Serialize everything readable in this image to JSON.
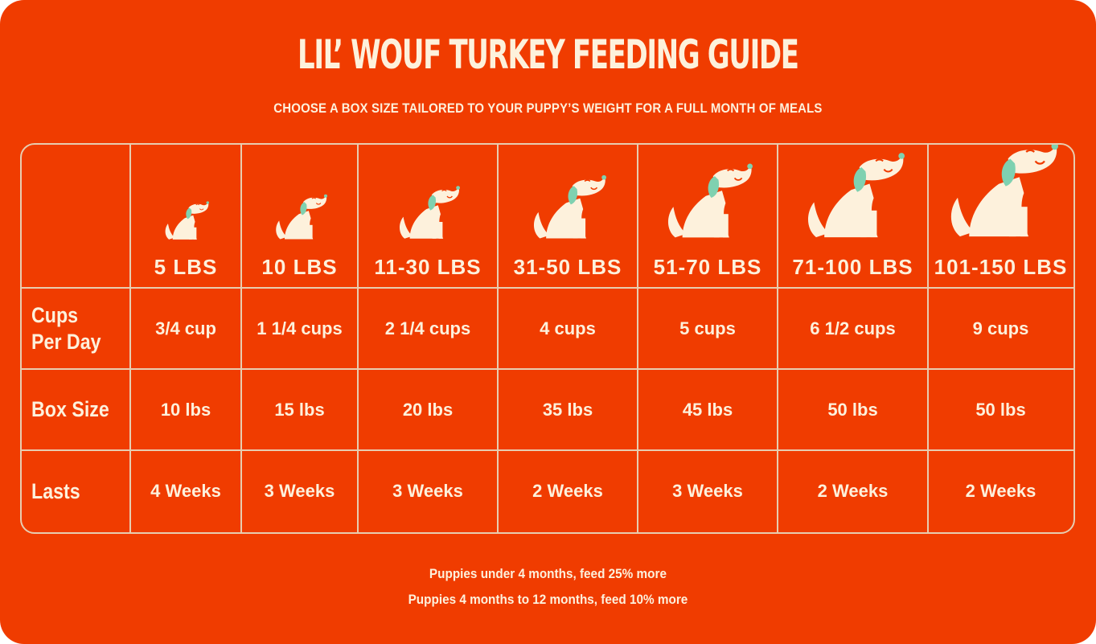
{
  "title": "LIL’ WOUF TURKEY FEEDING GUIDE",
  "subtitle": "CHOOSE A BOX SIZE TAILORED TO YOUR PUPPY’S WEIGHT FOR A FULL MONTH OF MEALS",
  "icons": {
    "dog": "sitting-dog-icon"
  },
  "colors": {
    "background": "#f03c00",
    "cream": "#fdf1dc",
    "teal": "#7fd1b0",
    "grid": "#e7cdb0"
  },
  "columns": [
    {
      "weight": "5 LBS",
      "cups": "3/4 cup",
      "box": "10 lbs",
      "lasts": "4 Weeks"
    },
    {
      "weight": "10 LBS",
      "cups": "1 1/4 cups",
      "box": "15 lbs",
      "lasts": "3 Weeks"
    },
    {
      "weight": "11-30 LBS",
      "cups": "2 1/4 cups",
      "box": "20 lbs",
      "lasts": "3 Weeks"
    },
    {
      "weight": "31-50 LBS",
      "cups": "4 cups",
      "box": "35 lbs",
      "lasts": "2 Weeks"
    },
    {
      "weight": "51-70 LBS",
      "cups": "5 cups",
      "box": "45 lbs",
      "lasts": "3 Weeks"
    },
    {
      "weight": "71-100 LBS",
      "cups": "6 1/2 cups",
      "box": "50 lbs",
      "lasts": "2 Weeks"
    },
    {
      "weight": "101-150 LBS",
      "cups": "9 cups",
      "box": "50 lbs",
      "lasts": "2 Weeks"
    }
  ],
  "row_labels": {
    "cups_line1": "Cups",
    "cups_line2": "Per Day",
    "box": "Box Size",
    "lasts": "Lasts"
  },
  "footer": {
    "line1": "Puppies under 4 months, feed 25% more",
    "line2": "Puppies 4 months to 12 months, feed 10% more"
  }
}
